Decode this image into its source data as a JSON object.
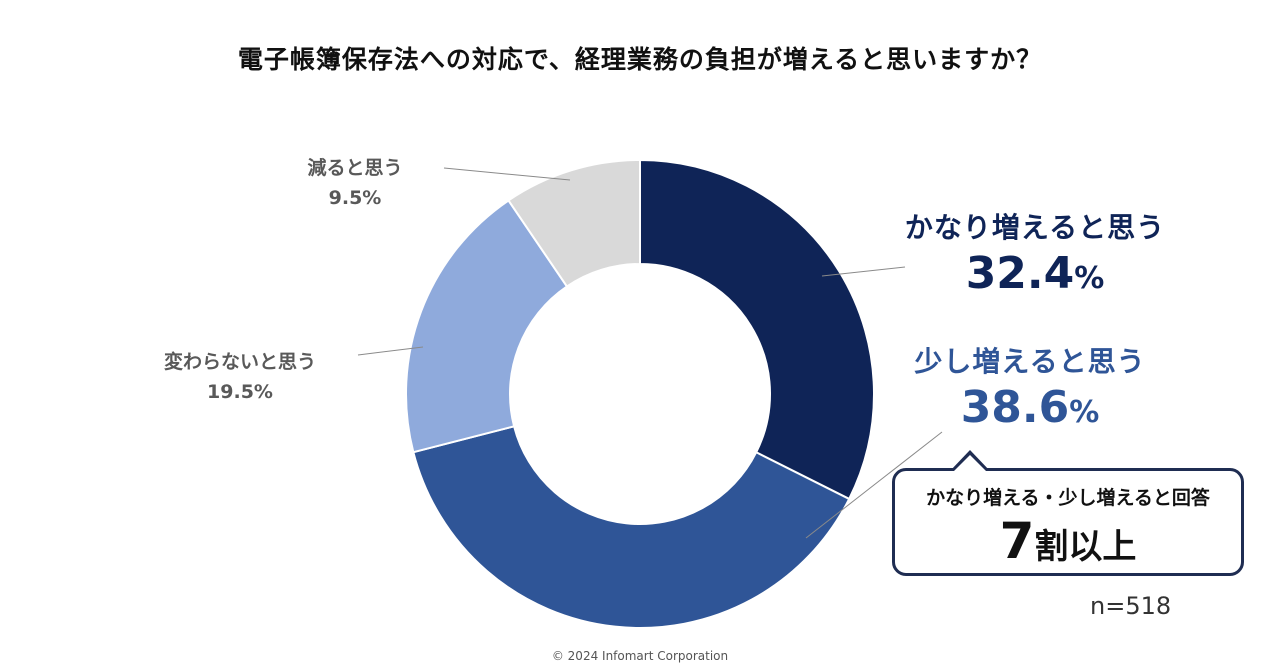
{
  "title": "電子帳簿保存法への対応で、経理業務の負担が増えると思いますか？",
  "chart_data": {
    "type": "pie",
    "donut": true,
    "title": "電子帳簿保存法への対応で、経理業務の負担が増えると思いますか？",
    "slices": [
      {
        "label": "かなり増えると思う",
        "value": 32.4,
        "value_text": "32.4",
        "color": "#0f2457"
      },
      {
        "label": "少し増えると思う",
        "value": 38.6,
        "value_text": "38.6",
        "color": "#2f5597"
      },
      {
        "label": "変わらないと思う",
        "value": 19.5,
        "value_text": "19.5%",
        "color": "#8faadc"
      },
      {
        "label": "減ると思う",
        "value": 9.5,
        "value_text": "9.5%",
        "color": "#d9d9d9"
      }
    ],
    "percent_sign": "%",
    "n": "n=518"
  },
  "callout": {
    "top": "かなり増える・少し増えると回答",
    "number": "7",
    "suffix": "割以上"
  },
  "footer": "© 2024  Infomart Corporation"
}
